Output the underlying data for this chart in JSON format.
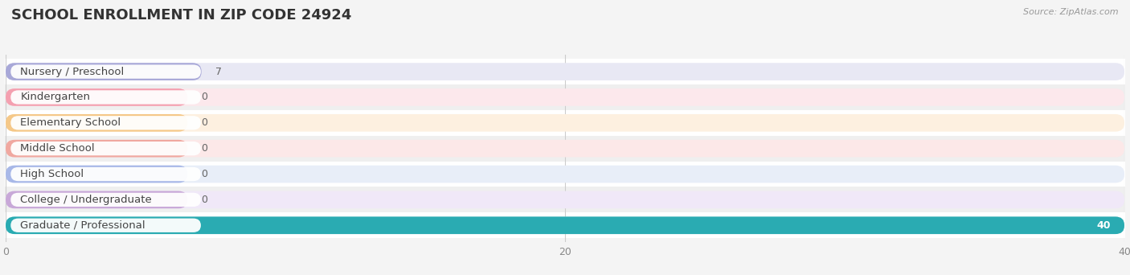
{
  "title": "SCHOOL ENROLLMENT IN ZIP CODE 24924",
  "source": "Source: ZipAtlas.com",
  "categories": [
    "Nursery / Preschool",
    "Kindergarten",
    "Elementary School",
    "Middle School",
    "High School",
    "College / Undergraduate",
    "Graduate / Professional"
  ],
  "values": [
    7,
    0,
    0,
    0,
    0,
    0,
    40
  ],
  "bar_colors": [
    "#a8a8d8",
    "#f4a0b0",
    "#f5c888",
    "#f0a8a0",
    "#a8b8e8",
    "#c8a8d8",
    "#2aabb2"
  ],
  "bar_bg_colors": [
    "#e8e8f4",
    "#fce8ec",
    "#fdf0e0",
    "#fce8e8",
    "#e8eef8",
    "#f0e8f8",
    "#e0f4f4"
  ],
  "value_text_colors": [
    "#555555",
    "#555555",
    "#555555",
    "#555555",
    "#555555",
    "#555555",
    "#ffffff"
  ],
  "xlim": [
    0,
    40
  ],
  "xticks": [
    0,
    20,
    40
  ],
  "background_color": "#f4f4f4",
  "row_bg_odd": "#ffffff",
  "row_bg_even": "#f0f0f0",
  "title_fontsize": 13,
  "label_fontsize": 9.5,
  "value_fontsize": 9,
  "min_bar_display": 6.5
}
